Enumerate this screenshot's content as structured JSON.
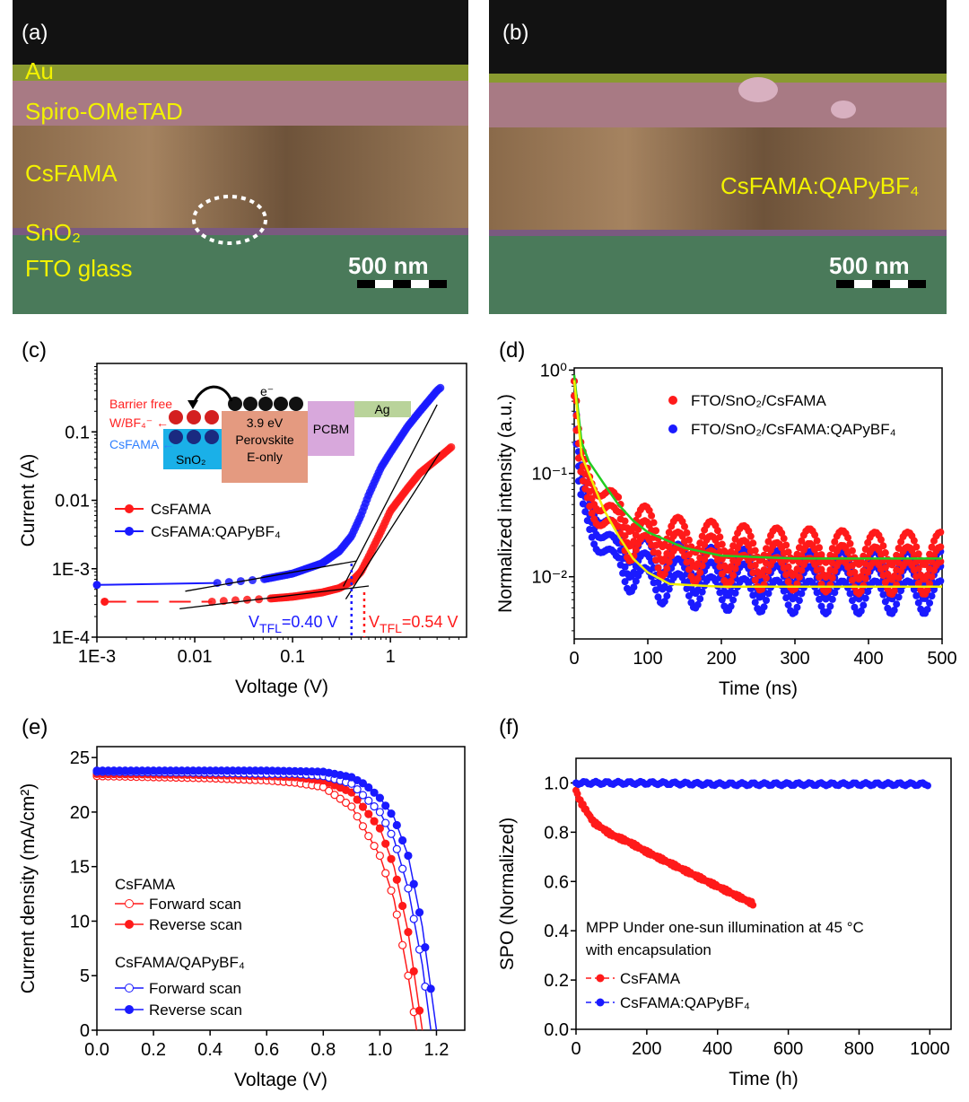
{
  "panels": {
    "a": {
      "label": "(a)",
      "layers": [
        "Au",
        "Spiro-OMeTAD",
        "CsFAMA",
        "SnO₂",
        "FTO glass"
      ],
      "scale_bar": "500 nm"
    },
    "b": {
      "label": "(b)",
      "layer": "CsFAMA:QAPyBF₄",
      "scale_bar": "500 nm"
    },
    "c": {
      "label": "(c)"
    },
    "d": {
      "label": "(d)"
    },
    "e": {
      "label": "(e)"
    },
    "f": {
      "label": "(f)"
    }
  },
  "inset_c": {
    "barrier_free": "Barrier free",
    "wbf4": "W/BF₄⁻ ←",
    "csfama": "CsFAMA ←",
    "snO2": "SnO₂",
    "electron": "e⁻",
    "perovskite_ev": "3.9 eV",
    "perovskite": "Perovskite",
    "eonly": "E-only",
    "pcbm": "PCBM",
    "ag": "Ag"
  },
  "annotations_c": {
    "blue_vtfl": {
      "v": "V",
      "sub": "TFL",
      "rest": "=0.40 V",
      "value": 0.4
    },
    "red_vtfl": {
      "v": "V",
      "sub": "TFL",
      "rest": "=0.54 V",
      "value": 0.54
    }
  },
  "annotations_f": {
    "line1": "MPP Under one-sun illumination at 45 °C",
    "line2": "with encapsulation"
  },
  "legend_e": {
    "group1": "CsFAMA",
    "group2": "CsFAMA/QAPyBF₄",
    "forward": "Forward scan",
    "reverse": "Reverse scan"
  },
  "colors": {
    "red": "#ff1a1a",
    "blue": "#1a1aff",
    "green": "#22cc22",
    "yellow": "#f0f000"
  },
  "chart_data": [
    {
      "panel": "c",
      "type": "line",
      "xlabel": "Voltage (V)",
      "ylabel": "Current (A)",
      "xscale": "log",
      "yscale": "log",
      "xlim": [
        0.001,
        6
      ],
      "ylim": [
        0.0001,
        1
      ],
      "xticks": [
        {
          "v": 0.001,
          "t": "1E-3"
        },
        {
          "v": 0.01,
          "t": "0.01"
        },
        {
          "v": 0.1,
          "t": "0.1"
        },
        {
          "v": 1,
          "t": "1"
        }
      ],
      "yticks": [
        {
          "v": 0.0001,
          "t": "1E-4"
        },
        {
          "v": 0.001,
          "t": "1E-3"
        },
        {
          "v": 0.01,
          "t": "0.01"
        },
        {
          "v": 0.1,
          "t": "0.1"
        }
      ],
      "legend": "center-left",
      "series": [
        {
          "name": "CsFAMA",
          "color": "#ff1a1a",
          "x": [
            0.0012,
            0.015,
            0.03,
            0.05,
            0.1,
            0.2,
            0.3,
            0.4,
            0.5,
            0.6,
            0.8,
            1.0,
            1.5,
            2.0,
            3.0,
            4.2
          ],
          "y": [
            0.00033,
            0.00033,
            0.00035,
            0.00036,
            0.00039,
            0.00045,
            0.00052,
            0.00065,
            0.0009,
            0.0015,
            0.0035,
            0.007,
            0.015,
            0.025,
            0.04,
            0.06
          ]
        },
        {
          "name": "CsFAMA:QAPyBF₄",
          "color": "#1a1aff",
          "x": [
            0.001,
            0.017,
            0.03,
            0.05,
            0.1,
            0.2,
            0.3,
            0.4,
            0.5,
            0.6,
            0.8,
            1.0,
            1.5,
            2.0,
            3.0,
            3.3
          ],
          "y": [
            0.00058,
            0.00062,
            0.00066,
            0.0007,
            0.00085,
            0.0012,
            0.0018,
            0.003,
            0.006,
            0.012,
            0.03,
            0.05,
            0.12,
            0.2,
            0.4,
            0.45
          ]
        }
      ],
      "fit_lines": [
        {
          "x": [
            0.007,
            0.6
          ],
          "y": [
            0.00026,
            0.00056
          ]
        },
        {
          "x": [
            0.35,
            3.2
          ],
          "y": [
            0.00036,
            0.05
          ]
        },
        {
          "x": [
            0.008,
            0.45
          ],
          "y": [
            0.00047,
            0.0013
          ]
        },
        {
          "x": [
            0.33,
            3.0
          ],
          "y": [
            0.00055,
            0.25
          ]
        }
      ]
    },
    {
      "panel": "d",
      "type": "scatter",
      "xlabel": "Time (ns)",
      "ylabel": "Normalized intensity (a.u.)",
      "xscale": "linear",
      "yscale": "log",
      "xlim": [
        0,
        500
      ],
      "ylim": [
        0.0025,
        1.05
      ],
      "xticks": [
        {
          "v": 0,
          "t": "0"
        },
        {
          "v": 100,
          "t": "100"
        },
        {
          "v": 200,
          "t": "200"
        },
        {
          "v": 300,
          "t": "300"
        },
        {
          "v": 400,
          "t": "400"
        },
        {
          "v": 500,
          "t": "500"
        }
      ],
      "yticks": [
        {
          "v": 1,
          "t": "10⁰"
        },
        {
          "v": 0.1,
          "t": "10⁻¹"
        },
        {
          "v": 0.01,
          "t": "10⁻²"
        }
      ],
      "legend": "top-right",
      "series": [
        {
          "name": "FTO/SnO₂/CsFAMA",
          "color": "#ff1a1a",
          "x": [
            0,
            5,
            10,
            20,
            30,
            40,
            60,
            80,
            100,
            120,
            150,
            200,
            250,
            300,
            350,
            400,
            450,
            500
          ],
          "y": [
            1.0,
            0.25,
            0.15,
            0.1,
            0.08,
            0.065,
            0.05,
            0.04,
            0.035,
            0.03,
            0.027,
            0.025,
            0.022,
            0.022,
            0.021,
            0.02,
            0.02,
            0.02
          ]
        },
        {
          "name": "FTO/SnO₂/CsFAMA:QAPyBF₄",
          "color": "#1a1aff",
          "x": [
            0,
            5,
            10,
            20,
            30,
            40,
            60,
            80,
            100,
            150,
            200,
            300,
            400,
            500
          ],
          "y": [
            1.0,
            0.15,
            0.09,
            0.06,
            0.045,
            0.035,
            0.025,
            0.02,
            0.017,
            0.015,
            0.014,
            0.013,
            0.013,
            0.013
          ]
        }
      ],
      "fits": [
        {
          "color": "#22cc22",
          "x": [
            0,
            10,
            20,
            40,
            60,
            80,
            100,
            150,
            200,
            300,
            500
          ],
          "y": [
            0.9,
            0.2,
            0.13,
            0.08,
            0.05,
            0.035,
            0.027,
            0.019,
            0.016,
            0.015,
            0.015
          ]
        },
        {
          "color": "#f0f000",
          "x": [
            0,
            10,
            20,
            40,
            60,
            80,
            100,
            130,
            200,
            500
          ],
          "y": [
            0.8,
            0.15,
            0.1,
            0.045,
            0.025,
            0.015,
            0.011,
            0.0085,
            0.008,
            0.008
          ]
        }
      ]
    },
    {
      "panel": "e",
      "type": "line",
      "xlabel": "Voltage (V)",
      "ylabel": "Current density (mA/cm²)",
      "xscale": "linear",
      "yscale": "linear",
      "xlim": [
        0,
        1.3
      ],
      "ylim": [
        0,
        26
      ],
      "xticks": [
        {
          "v": 0,
          "t": "0.0"
        },
        {
          "v": 0.2,
          "t": "0.2"
        },
        {
          "v": 0.4,
          "t": "0.4"
        },
        {
          "v": 0.6,
          "t": "0.6"
        },
        {
          "v": 0.8,
          "t": "0.8"
        },
        {
          "v": 1.0,
          "t": "1.0"
        },
        {
          "v": 1.2,
          "t": "1.2"
        }
      ],
      "yticks": [
        {
          "v": 0,
          "t": "0"
        },
        {
          "v": 5,
          "t": "5"
        },
        {
          "v": 10,
          "t": "10"
        },
        {
          "v": 15,
          "t": "15"
        },
        {
          "v": 20,
          "t": "20"
        },
        {
          "v": 25,
          "t": "25"
        }
      ],
      "legend": "center-left",
      "series": [
        {
          "name": "CsFAMA Forward scan",
          "color": "#ff1a1a",
          "filled": false,
          "x": [
            0,
            0.4,
            0.6,
            0.7,
            0.8,
            0.9,
            1.0,
            1.05,
            1.1,
            1.13
          ],
          "y": [
            23.3,
            23.1,
            22.9,
            22.7,
            22.3,
            20.5,
            16,
            12,
            5,
            0
          ]
        },
        {
          "name": "CsFAMA Reverse scan",
          "color": "#ff1a1a",
          "filled": true,
          "x": [
            0,
            0.4,
            0.6,
            0.7,
            0.8,
            0.9,
            1.0,
            1.05,
            1.1,
            1.15
          ],
          "y": [
            23.5,
            23.4,
            23.3,
            23.2,
            22.9,
            21.8,
            18.5,
            15,
            9,
            0
          ]
        },
        {
          "name": "CsFAMA/QAPyBF₄ Forward scan",
          "color": "#1a1aff",
          "filled": false,
          "x": [
            0,
            0.4,
            0.6,
            0.7,
            0.8,
            0.9,
            1.0,
            1.05,
            1.1,
            1.15,
            1.18
          ],
          "y": [
            23.7,
            23.6,
            23.5,
            23.5,
            23.3,
            22.6,
            20,
            17.5,
            13,
            6,
            0
          ]
        },
        {
          "name": "CsFAMA/QAPyBF₄ Reverse scan",
          "color": "#1a1aff",
          "filled": true,
          "x": [
            0,
            0.4,
            0.6,
            0.8,
            0.9,
            0.95,
            1.0,
            1.05,
            1.1,
            1.15,
            1.2
          ],
          "y": [
            23.8,
            23.8,
            23.8,
            23.7,
            23.2,
            22.5,
            21.3,
            19.5,
            16,
            9.5,
            0
          ]
        }
      ]
    },
    {
      "panel": "f",
      "type": "line",
      "xlabel": "Time (h)",
      "ylabel": "SPO (Normalized)",
      "xscale": "linear",
      "yscale": "linear",
      "xlim": [
        0,
        1060
      ],
      "ylim": [
        0,
        1.1
      ],
      "xticks": [
        {
          "v": 0,
          "t": "0"
        },
        {
          "v": 200,
          "t": "200"
        },
        {
          "v": 400,
          "t": "400"
        },
        {
          "v": 600,
          "t": "600"
        },
        {
          "v": 800,
          "t": "800"
        },
        {
          "v": 1000,
          "t": "1000"
        }
      ],
      "yticks": [
        {
          "v": 0,
          "t": "0.0"
        },
        {
          "v": 0.2,
          "t": "0.2"
        },
        {
          "v": 0.4,
          "t": "0.4"
        },
        {
          "v": 0.6,
          "t": "0.6"
        },
        {
          "v": 0.8,
          "t": "0.8"
        },
        {
          "v": 1.0,
          "t": "1.0"
        }
      ],
      "legend": "bottom-left",
      "series": [
        {
          "name": "CsFAMA",
          "color": "#ff1a1a",
          "x": [
            0,
            10,
            50,
            100,
            150,
            200,
            300,
            400,
            500
          ],
          "y": [
            0.97,
            0.93,
            0.84,
            0.79,
            0.76,
            0.72,
            0.65,
            0.58,
            0.51
          ]
        },
        {
          "name": "CsFAMA:QAPyBF₄",
          "color": "#1a1aff",
          "x": [
            0,
            200,
            400,
            600,
            800,
            1000
          ],
          "y": [
            1.0,
            1.0,
            0.995,
            0.995,
            0.995,
            0.995
          ]
        }
      ]
    }
  ]
}
